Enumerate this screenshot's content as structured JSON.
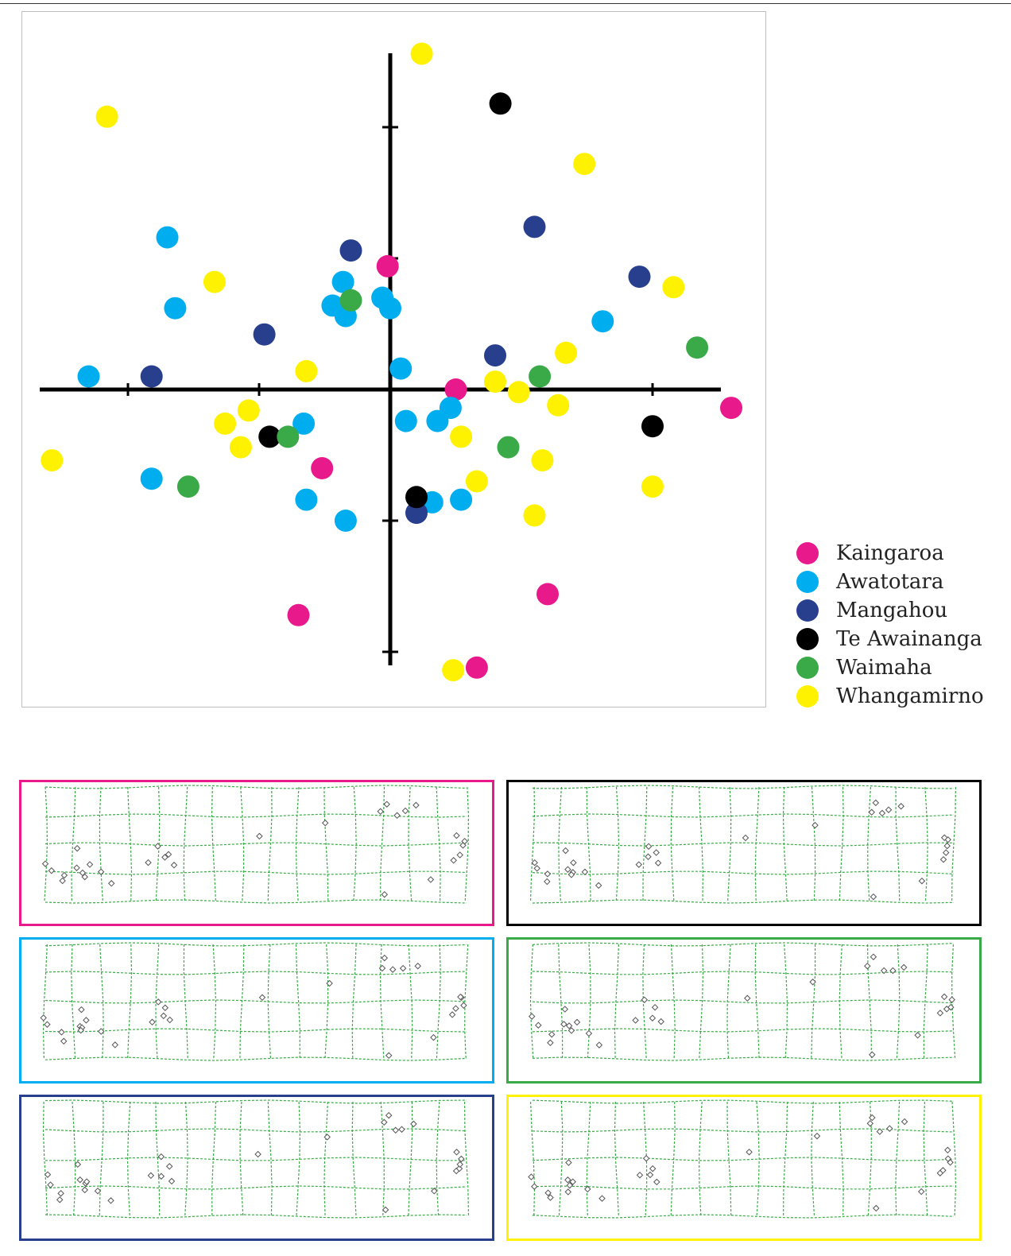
{
  "chart_data": [
    {
      "type": "scatter",
      "title": "",
      "xlabel": "",
      "ylabel": "",
      "grid": false,
      "axes": "cross-through-origin",
      "xlim": [
        -1.3,
        1.27
      ],
      "ylim": [
        -1.06,
        1.3
      ],
      "legend_placement": "right-bottom",
      "series": [
        {
          "name": "Kaingaroa",
          "color": "#e8198b",
          "points": [
            [
              -0.01,
              0.47
            ],
            [
              0.25,
              0.0
            ],
            [
              -0.26,
              -0.3
            ],
            [
              -0.35,
              -0.86
            ],
            [
              0.6,
              -0.78
            ],
            [
              0.33,
              -1.06
            ],
            [
              1.3,
              -0.07
            ]
          ]
        },
        {
          "name": "Awatotara",
          "color": "#00aeef",
          "points": [
            [
              -0.85,
              0.58
            ],
            [
              -0.82,
              0.31
            ],
            [
              -1.15,
              0.05
            ],
            [
              -0.18,
              0.41
            ],
            [
              -0.22,
              0.32
            ],
            [
              -0.17,
              0.28
            ],
            [
              -0.03,
              0.35
            ],
            [
              0.0,
              0.31
            ],
            [
              0.04,
              0.08
            ],
            [
              0.06,
              -0.12
            ],
            [
              0.18,
              -0.12
            ],
            [
              0.23,
              -0.07
            ],
            [
              -0.33,
              -0.13
            ],
            [
              -0.91,
              -0.34
            ],
            [
              -0.32,
              -0.42
            ],
            [
              -0.17,
              -0.5
            ],
            [
              0.16,
              -0.43
            ],
            [
              0.27,
              -0.42
            ],
            [
              0.81,
              0.26
            ]
          ]
        },
        {
          "name": "Mangahou",
          "color": "#283f8e",
          "points": [
            [
              -0.15,
              0.53
            ],
            [
              -0.48,
              0.21
            ],
            [
              -0.91,
              0.05
            ],
            [
              0.55,
              0.62
            ],
            [
              0.95,
              0.43
            ],
            [
              0.4,
              0.13
            ],
            [
              0.1,
              -0.47
            ]
          ]
        },
        {
          "name": "Te Awainanga",
          "color": "#000000",
          "points": [
            [
              0.42,
              1.09
            ],
            [
              -0.46,
              -0.18
            ],
            [
              0.1,
              -0.41
            ],
            [
              1.0,
              -0.14
            ]
          ]
        },
        {
          "name": "Waimaha",
          "color": "#3aaa48",
          "points": [
            [
              -0.15,
              0.34
            ],
            [
              -0.39,
              -0.18
            ],
            [
              -0.77,
              -0.37
            ],
            [
              0.57,
              0.05
            ],
            [
              0.45,
              -0.22
            ],
            [
              1.17,
              0.16
            ]
          ]
        },
        {
          "name": "Whangamirno",
          "color": "#fff200",
          "points": [
            [
              0.12,
              1.28
            ],
            [
              -1.08,
              1.04
            ],
            [
              0.74,
              0.86
            ],
            [
              -0.67,
              0.41
            ],
            [
              1.08,
              0.39
            ],
            [
              0.67,
              0.14
            ],
            [
              -0.32,
              0.07
            ],
            [
              0.4,
              0.03
            ],
            [
              0.49,
              -0.01
            ],
            [
              0.64,
              -0.06
            ],
            [
              -0.54,
              -0.08
            ],
            [
              -0.63,
              -0.13
            ],
            [
              -0.57,
              -0.22
            ],
            [
              0.27,
              -0.18
            ],
            [
              -1.29,
              -0.27
            ],
            [
              0.58,
              -0.27
            ],
            [
              0.33,
              -0.35
            ],
            [
              1.0,
              -0.37
            ],
            [
              0.55,
              -0.48
            ],
            [
              0.24,
              -1.07
            ]
          ]
        }
      ]
    },
    {
      "type": "deformation-grids",
      "panels": [
        {
          "name": "Kaingaroa",
          "color": "#e8198b"
        },
        {
          "name": "Te Awainanga",
          "color": "#000000"
        },
        {
          "name": "Awatotara",
          "color": "#00aeef"
        },
        {
          "name": "Waimaha",
          "color": "#3aaa48"
        },
        {
          "name": "Mangahou",
          "color": "#283f8e"
        },
        {
          "name": "Whangamirno",
          "color": "#fff200"
        }
      ],
      "grid_color": "#3aaa48",
      "grid_columns": 15,
      "grid_rows": 4,
      "landmark_count": 30
    }
  ]
}
